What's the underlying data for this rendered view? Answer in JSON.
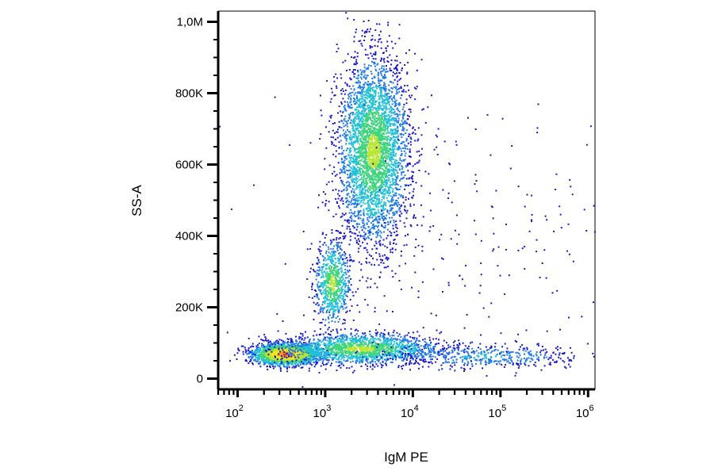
{
  "chart_data": {
    "type": "scatter",
    "title": "",
    "xlabel": "IgM PE",
    "ylabel": "SS-A",
    "x_scale": "log",
    "xlim": [
      60,
      1200000
    ],
    "ylim": [
      -30000,
      1030000
    ],
    "x_ticks": [
      {
        "value": 100,
        "base": "10",
        "exp": "2"
      },
      {
        "value": 1000,
        "base": "10",
        "exp": "3"
      },
      {
        "value": 10000,
        "base": "10",
        "exp": "4"
      },
      {
        "value": 100000,
        "base": "10",
        "exp": "5"
      },
      {
        "value": 1000000,
        "base": "10",
        "exp": "6"
      }
    ],
    "y_ticks": [
      {
        "value": 0,
        "label": "0"
      },
      {
        "value": 200000,
        "label": "200K"
      },
      {
        "value": 400000,
        "label": "400K"
      },
      {
        "value": 600000,
        "label": "600K"
      },
      {
        "value": 800000,
        "label": "800K"
      },
      {
        "value": 1000000,
        "label": "1,0M"
      }
    ],
    "grid": false,
    "legend": "none",
    "density_colormap": [
      "#1a1acd",
      "#1e7be6",
      "#20c0d8",
      "#3fd47c",
      "#b8e62e",
      "#f5e51c",
      "#f79a16",
      "#e8271a"
    ],
    "populations": [
      {
        "x_center": 350,
        "y_center": 70000,
        "x_spread_decades": 0.18,
        "y_spread": 14000,
        "relative_size": 0.26,
        "density": "high"
      },
      {
        "x_center": 2500,
        "y_center": 85000,
        "x_spread_decades": 0.45,
        "y_spread": 22000,
        "relative_size": 0.18,
        "density": "medium"
      },
      {
        "x_center": 60000,
        "y_center": 65000,
        "x_spread_decades": 0.6,
        "y_spread": 18000,
        "relative_size": 0.05,
        "density": "low"
      },
      {
        "x_center": 3500,
        "y_center": 640000,
        "x_spread_decades": 0.2,
        "y_spread": 130000,
        "relative_size": 0.4,
        "density": "medium"
      },
      {
        "x_center": 1200,
        "y_center": 270000,
        "x_spread_decades": 0.1,
        "y_spread": 60000,
        "relative_size": 0.08,
        "density": "medium"
      },
      {
        "x_center": 50000,
        "y_center": 400000,
        "x_spread_decades": 1.2,
        "y_spread": 200000,
        "relative_size": 0.03,
        "density": "sparse"
      }
    ]
  }
}
